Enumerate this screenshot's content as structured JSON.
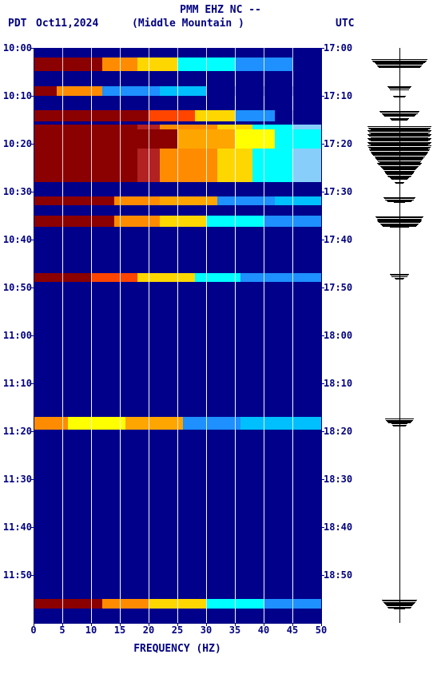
{
  "header": {
    "line1": "PMM EHZ NC --",
    "tz_left": "PDT",
    "date": "Oct11,2024",
    "station": "(Middle Mountain )",
    "tz_right": "UTC"
  },
  "xaxis": {
    "label": "FREQUENCY (HZ)",
    "min": 0,
    "max": 50,
    "ticks": [
      0,
      5,
      10,
      15,
      20,
      25,
      30,
      35,
      40,
      45,
      50
    ]
  },
  "yaxis": {
    "left_label_prefix": "",
    "left_ticks": [
      "10:00",
      "10:10",
      "10:20",
      "10:30",
      "10:40",
      "10:50",
      "11:00",
      "11:10",
      "11:20",
      "11:30",
      "11:40",
      "11:50"
    ],
    "right_ticks": [
      "17:00",
      "17:10",
      "17:20",
      "17:30",
      "17:40",
      "17:50",
      "18:00",
      "18:10",
      "18:20",
      "18:30",
      "18:40",
      "18:50"
    ],
    "total_minutes": 60
  },
  "colors": {
    "background": "#00008b",
    "text": "#000080",
    "grid": "#ffffff"
  },
  "spectrogram_bands": [
    {
      "start_min": 0.0,
      "height_min": 1.0,
      "segments": [
        {
          "f0": 0,
          "f1": 50,
          "color": "#00008b"
        }
      ]
    },
    {
      "start_min": 1.0,
      "height_min": 1.4,
      "segments": [
        {
          "f0": 0,
          "f1": 12,
          "color": "#8b0000"
        },
        {
          "f0": 12,
          "f1": 18,
          "color": "#ff8c00"
        },
        {
          "f0": 18,
          "f1": 25,
          "color": "#ffd700"
        },
        {
          "f0": 25,
          "f1": 35,
          "color": "#00ffff"
        },
        {
          "f0": 35,
          "f1": 45,
          "color": "#1e90ff"
        },
        {
          "f0": 45,
          "f1": 50,
          "color": "#00008b"
        }
      ]
    },
    {
      "start_min": 4.0,
      "height_min": 1.0,
      "segments": [
        {
          "f0": 0,
          "f1": 4,
          "color": "#8b0000"
        },
        {
          "f0": 4,
          "f1": 12,
          "color": "#ff8c00"
        },
        {
          "f0": 12,
          "f1": 22,
          "color": "#1e90ff"
        },
        {
          "f0": 22,
          "f1": 30,
          "color": "#00bfff"
        },
        {
          "f0": 30,
          "f1": 50,
          "color": "#00008b"
        }
      ]
    },
    {
      "start_min": 6.5,
      "height_min": 1.2,
      "segments": [
        {
          "f0": 0,
          "f1": 20,
          "color": "#8b0000"
        },
        {
          "f0": 20,
          "f1": 28,
          "color": "#ff4500"
        },
        {
          "f0": 28,
          "f1": 35,
          "color": "#ffd700"
        },
        {
          "f0": 35,
          "f1": 42,
          "color": "#1e90ff"
        },
        {
          "f0": 42,
          "f1": 50,
          "color": "#00008b"
        }
      ]
    },
    {
      "start_min": 8.0,
      "height_min": 6.0,
      "segments": [
        {
          "f0": 0,
          "f1": 18,
          "color": "#8b0000"
        },
        {
          "f0": 18,
          "f1": 22,
          "color": "#b22222"
        },
        {
          "f0": 22,
          "f1": 32,
          "color": "#ff8c00"
        },
        {
          "f0": 32,
          "f1": 38,
          "color": "#ffd700"
        },
        {
          "f0": 38,
          "f1": 45,
          "color": "#00ffff"
        },
        {
          "f0": 45,
          "f1": 50,
          "color": "#87cefa"
        }
      ]
    },
    {
      "start_min": 8.5,
      "height_min": 2.0,
      "segments": [
        {
          "f0": 0,
          "f1": 15,
          "color": "#8b0000"
        },
        {
          "f0": 15,
          "f1": 25,
          "color": "#8b0000"
        },
        {
          "f0": 25,
          "f1": 35,
          "color": "#ffa500"
        },
        {
          "f0": 35,
          "f1": 42,
          "color": "#ffff00"
        },
        {
          "f0": 42,
          "f1": 50,
          "color": "#00ffff"
        }
      ]
    },
    {
      "start_min": 15.5,
      "height_min": 0.9,
      "segments": [
        {
          "f0": 0,
          "f1": 14,
          "color": "#8b0000"
        },
        {
          "f0": 14,
          "f1": 22,
          "color": "#ff8c00"
        },
        {
          "f0": 22,
          "f1": 32,
          "color": "#ffa500"
        },
        {
          "f0": 32,
          "f1": 42,
          "color": "#1e90ff"
        },
        {
          "f0": 42,
          "f1": 50,
          "color": "#00bfff"
        }
      ]
    },
    {
      "start_min": 17.5,
      "height_min": 1.2,
      "segments": [
        {
          "f0": 0,
          "f1": 14,
          "color": "#8b0000"
        },
        {
          "f0": 14,
          "f1": 22,
          "color": "#ff8c00"
        },
        {
          "f0": 22,
          "f1": 30,
          "color": "#ffd700"
        },
        {
          "f0": 30,
          "f1": 40,
          "color": "#00ffff"
        },
        {
          "f0": 40,
          "f1": 50,
          "color": "#1e90ff"
        }
      ]
    },
    {
      "start_min": 23.5,
      "height_min": 0.9,
      "segments": [
        {
          "f0": 0,
          "f1": 10,
          "color": "#8b0000"
        },
        {
          "f0": 10,
          "f1": 18,
          "color": "#ff4500"
        },
        {
          "f0": 18,
          "f1": 28,
          "color": "#ffd700"
        },
        {
          "f0": 28,
          "f1": 36,
          "color": "#00ffff"
        },
        {
          "f0": 36,
          "f1": 50,
          "color": "#1e90ff"
        }
      ]
    },
    {
      "start_min": 38.5,
      "height_min": 1.3,
      "segments": [
        {
          "f0": 0,
          "f1": 6,
          "color": "#ff8c00"
        },
        {
          "f0": 6,
          "f1": 16,
          "color": "#ffff00"
        },
        {
          "f0": 16,
          "f1": 26,
          "color": "#ffa500"
        },
        {
          "f0": 26,
          "f1": 36,
          "color": "#1e90ff"
        },
        {
          "f0": 36,
          "f1": 50,
          "color": "#00bfff"
        }
      ]
    },
    {
      "start_min": 57.5,
      "height_min": 1.0,
      "segments": [
        {
          "f0": 0,
          "f1": 12,
          "color": "#8b0000"
        },
        {
          "f0": 12,
          "f1": 20,
          "color": "#ff8c00"
        },
        {
          "f0": 20,
          "f1": 30,
          "color": "#ffd700"
        },
        {
          "f0": 30,
          "f1": 40,
          "color": "#00ffff"
        },
        {
          "f0": 40,
          "f1": 50,
          "color": "#1e90ff"
        }
      ]
    }
  ],
  "seismogram_events": [
    {
      "min": 1.2,
      "amp": 35
    },
    {
      "min": 1.8,
      "amp": 10
    },
    {
      "min": 4.0,
      "amp": 15
    },
    {
      "min": 5.0,
      "amp": 8
    },
    {
      "min": 6.6,
      "amp": 25
    },
    {
      "min": 7.3,
      "amp": 12
    },
    {
      "min": 8.2,
      "amp": 40
    },
    {
      "min": 8.6,
      "amp": 40
    },
    {
      "min": 9.0,
      "amp": 40
    },
    {
      "min": 9.4,
      "amp": 40
    },
    {
      "min": 9.8,
      "amp": 40
    },
    {
      "min": 10.2,
      "amp": 40
    },
    {
      "min": 10.6,
      "amp": 38
    },
    {
      "min": 11.0,
      "amp": 35
    },
    {
      "min": 11.5,
      "amp": 30
    },
    {
      "min": 12.0,
      "amp": 28
    },
    {
      "min": 12.5,
      "amp": 22
    },
    {
      "min": 13.0,
      "amp": 18
    },
    {
      "min": 13.5,
      "amp": 12
    },
    {
      "min": 14.0,
      "amp": 6
    },
    {
      "min": 15.6,
      "amp": 20
    },
    {
      "min": 16.0,
      "amp": 8
    },
    {
      "min": 17.6,
      "amp": 30
    },
    {
      "min": 18.0,
      "amp": 28
    },
    {
      "min": 18.4,
      "amp": 15
    },
    {
      "min": 23.6,
      "amp": 12
    },
    {
      "min": 24.0,
      "amp": 6
    },
    {
      "min": 38.7,
      "amp": 18
    },
    {
      "min": 39.2,
      "amp": 10
    },
    {
      "min": 57.6,
      "amp": 22
    },
    {
      "min": 58.0,
      "amp": 18
    },
    {
      "min": 58.4,
      "amp": 8
    }
  ]
}
